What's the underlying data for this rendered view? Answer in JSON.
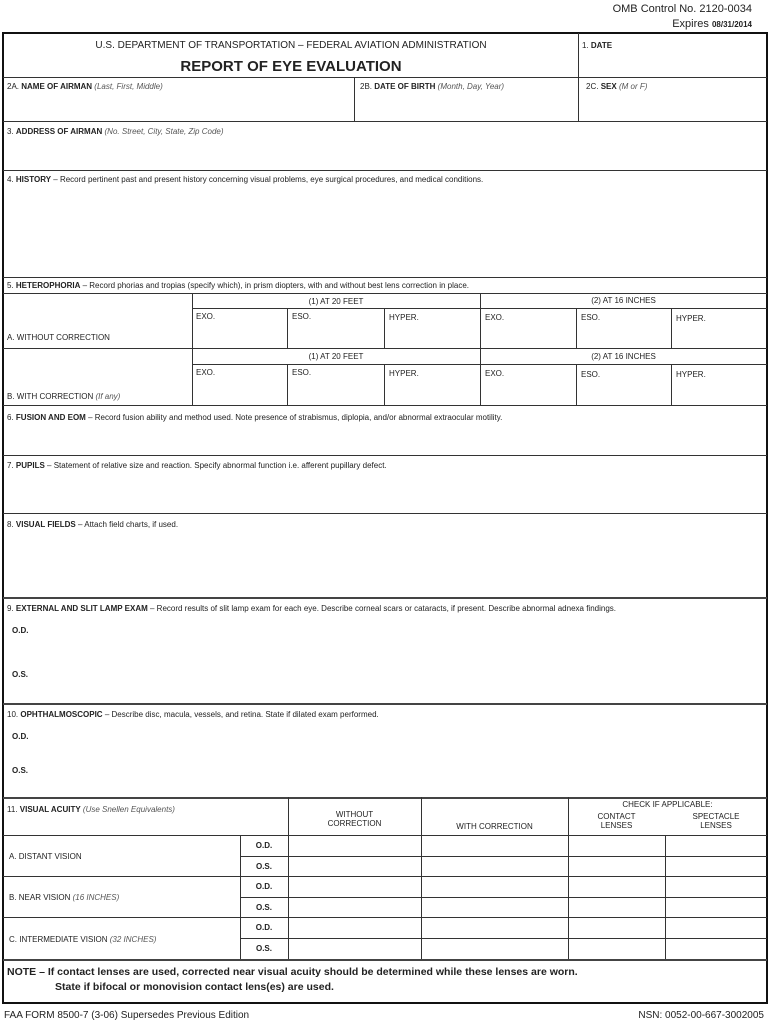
{
  "omb": {
    "control": "OMB Control No. 2120-0034",
    "expires_label": "Expires",
    "expires_date": "08/31/2014"
  },
  "header": {
    "agency": "U.S. DEPARTMENT OF TRANSPORTATION – FEDERAL AVIATION ADMINISTRATION",
    "title": "REPORT OF EYE EVALUATION",
    "date_num": "1.",
    "date_label": "DATE"
  },
  "row2": {
    "name_num": "2A.",
    "name_label": "NAME OF AIRMAN",
    "name_hint": "(Last, First, Middle)",
    "dob_num": "2B.",
    "dob_label": "DATE OF BIRTH",
    "dob_hint": "(Month, Day, Year)",
    "sex_num": "2C.",
    "sex_label": "SEX",
    "sex_hint": "(M or F)"
  },
  "s3": {
    "num": "3.",
    "label": "ADDRESS OF AIRMAN",
    "hint": "(No. Street, City, State, Zip Code)"
  },
  "s4": {
    "num": "4.",
    "label": "HISTORY",
    "desc": "– Record pertinent past and present history concerning visual problems, eye surgical procedures, and medical conditions."
  },
  "s5": {
    "num": "5.",
    "label": "HETEROPHORIA",
    "desc": "– Record phorias and tropias (specify which), in prism diopters, with and without best lens correction in place.",
    "at20": "(1) AT 20 FEET",
    "at16": "(2) AT 16 INCHES",
    "exo": "EXO.",
    "eso": "ESO.",
    "hyper": "HYPER.",
    "row_a": "A.  WITHOUT CORRECTION",
    "row_b": "B.  WITH CORRECTION",
    "row_b_hint": "(If any)"
  },
  "s6": {
    "num": "6.",
    "label": "FUSION AND EOM",
    "desc": "– Record fusion ability and method used.  Note presence of strabismus, diplopia, and/or abnormal extraocular motility."
  },
  "s7": {
    "num": "7.",
    "label": "PUPILS",
    "desc": "– Statement of relative size and reaction.  Specify abnormal function i.e. afferent pupillary defect."
  },
  "s8": {
    "num": "8.",
    "label": "VISUAL FIELDS",
    "desc": "– Attach field charts, if used."
  },
  "s9": {
    "num": "9.",
    "label": "EXTERNAL AND SLIT LAMP EXAM",
    "desc": "– Record results of slit lamp exam for each eye. Describe corneal scars or cataracts, if present. Describe abnormal adnexa findings.",
    "od": "O.D.",
    "os": "O.S."
  },
  "s10": {
    "num": "10.",
    "label": "OPHTHALMOSCOPIC",
    "desc": "– Describe disc, macula, vessels, and retina.  State if dilated exam performed.",
    "od": "O.D.",
    "os": "O.S."
  },
  "s11": {
    "num": "11.",
    "label": "VISUAL ACUITY",
    "hint": "(Use Snellen Equivalents)",
    "without1": "WITHOUT",
    "without2": "CORRECTION",
    "with": "WITH CORRECTION",
    "check": "CHECK IF APPLICABLE:",
    "contact1": "CONTACT",
    "contact2": "LENSES",
    "spect1": "SPECTACLE",
    "spect2": "LENSES",
    "distant": "A.  DISTANT VISION",
    "near": "B.  NEAR VISION",
    "near_hint": "(16 INCHES)",
    "inter": "C.  INTERMEDIATE VISION",
    "inter_hint": "(32 INCHES)",
    "od": "O.D.",
    "os": "O.S."
  },
  "note": {
    "line1": "NOTE – If contact lenses are used, corrected near visual acuity should be determined while these lenses are worn.",
    "line2": "State if bifocal or monovision contact lens(es) are used."
  },
  "footer": {
    "form": "FAA FORM 8500-7 (3-06) Supersedes Previous Edition",
    "nsn": "NSN: 0052-00-667-3002005"
  }
}
